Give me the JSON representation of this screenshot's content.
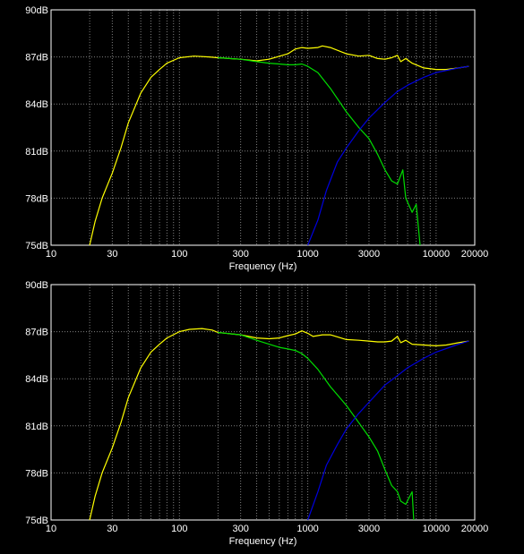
{
  "colors": {
    "background": "#000000",
    "frame": "#ffffff",
    "grid": "#7f7f7f",
    "text": "#ffffff"
  },
  "chart_data": [
    {
      "type": "line",
      "title": "",
      "xlabel": "Frequency (Hz)",
      "ylabel": "",
      "xscale": "log",
      "xlim": [
        10,
        20000
      ],
      "ylim": [
        75,
        90
      ],
      "grid": true,
      "x_ticks": [
        10,
        30,
        100,
        300,
        1000,
        3000,
        10000,
        20000
      ],
      "x_tick_labels": [
        "10",
        "30",
        "100",
        "300",
        "1000",
        "3000",
        "10000",
        "20000"
      ],
      "y_ticks": [
        75,
        78,
        81,
        84,
        87,
        90
      ],
      "y_tick_labels": [
        "75dB",
        "78dB",
        "81dB",
        "84dB",
        "87dB",
        "90dB"
      ],
      "series": [
        {
          "color": "#ffff00",
          "points": [
            [
              20,
              75
            ],
            [
              22,
              76.5
            ],
            [
              25,
              78
            ],
            [
              30,
              79.6
            ],
            [
              35,
              81.2
            ],
            [
              40,
              82.8
            ],
            [
              50,
              84.7
            ],
            [
              60,
              85.7
            ],
            [
              70,
              86.2
            ],
            [
              80,
              86.6
            ],
            [
              100,
              86.95
            ],
            [
              130,
              87.05
            ],
            [
              170,
              87
            ],
            [
              200,
              86.95
            ],
            [
              300,
              86.85
            ],
            [
              400,
              86.75
            ],
            [
              500,
              86.85
            ],
            [
              700,
              87.2
            ],
            [
              800,
              87.5
            ],
            [
              900,
              87.6
            ],
            [
              1000,
              87.55
            ],
            [
              1200,
              87.6
            ],
            [
              1300,
              87.7
            ],
            [
              1500,
              87.6
            ],
            [
              2000,
              87.2
            ],
            [
              2500,
              87.05
            ],
            [
              3000,
              87.1
            ],
            [
              3500,
              86.9
            ],
            [
              4000,
              86.85
            ],
            [
              4500,
              86.95
            ],
            [
              5000,
              87.1
            ],
            [
              5300,
              86.7
            ],
            [
              5800,
              86.9
            ],
            [
              6500,
              86.6
            ],
            [
              8000,
              86.3
            ],
            [
              10000,
              86.2
            ],
            [
              12000,
              86.2
            ],
            [
              15000,
              86.3
            ],
            [
              18000,
              86.4
            ]
          ]
        },
        {
          "color": "#00dd00",
          "points": [
            [
              200,
              86.95
            ],
            [
              300,
              86.85
            ],
            [
              400,
              86.7
            ],
            [
              500,
              86.6
            ],
            [
              600,
              86.55
            ],
            [
              700,
              86.5
            ],
            [
              800,
              86.5
            ],
            [
              900,
              86.55
            ],
            [
              1000,
              86.4
            ],
            [
              1200,
              86
            ],
            [
              1500,
              85
            ],
            [
              2000,
              83.5
            ],
            [
              2500,
              82.5
            ],
            [
              3000,
              81.8
            ],
            [
              3500,
              80.8
            ],
            [
              4000,
              79.8
            ],
            [
              4500,
              79.1
            ],
            [
              5000,
              78.9
            ],
            [
              5500,
              79.8
            ],
            [
              5800,
              78
            ],
            [
              6500,
              77.1
            ],
            [
              7000,
              77.6
            ],
            [
              7500,
              75
            ]
          ]
        },
        {
          "color": "#0000dd",
          "points": [
            [
              1000,
              75
            ],
            [
              1200,
              76.6
            ],
            [
              1400,
              78.5
            ],
            [
              1700,
              80.3
            ],
            [
              2000,
              81.2
            ],
            [
              2500,
              82.3
            ],
            [
              3000,
              83.1
            ],
            [
              4000,
              84.1
            ],
            [
              5000,
              84.8
            ],
            [
              6000,
              85.2
            ],
            [
              8000,
              85.7
            ],
            [
              10000,
              86
            ],
            [
              15000,
              86.3
            ],
            [
              18000,
              86.4
            ]
          ]
        }
      ]
    },
    {
      "type": "line",
      "title": "",
      "xlabel": "Frequency (Hz)",
      "ylabel": "",
      "xscale": "log",
      "xlim": [
        10,
        20000
      ],
      "ylim": [
        75,
        90
      ],
      "grid": true,
      "x_ticks": [
        10,
        30,
        100,
        300,
        1000,
        3000,
        10000,
        20000
      ],
      "x_tick_labels": [
        "10",
        "30",
        "100",
        "300",
        "1000",
        "3000",
        "10000",
        "20000"
      ],
      "y_ticks": [
        75,
        78,
        81,
        84,
        87,
        90
      ],
      "y_tick_labels": [
        "75dB",
        "78dB",
        "81dB",
        "84dB",
        "87dB",
        "90dB"
      ],
      "series": [
        {
          "color": "#ffff00",
          "points": [
            [
              20,
              75
            ],
            [
              22,
              76.5
            ],
            [
              25,
              78
            ],
            [
              30,
              79.6
            ],
            [
              35,
              81.2
            ],
            [
              40,
              82.8
            ],
            [
              50,
              84.7
            ],
            [
              60,
              85.7
            ],
            [
              70,
              86.2
            ],
            [
              80,
              86.6
            ],
            [
              100,
              87
            ],
            [
              120,
              87.15
            ],
            [
              150,
              87.2
            ],
            [
              180,
              87.1
            ],
            [
              200,
              86.95
            ],
            [
              300,
              86.8
            ],
            [
              400,
              86.6
            ],
            [
              500,
              86.55
            ],
            [
              600,
              86.6
            ],
            [
              700,
              86.75
            ],
            [
              800,
              86.85
            ],
            [
              900,
              87.05
            ],
            [
              1000,
              86.9
            ],
            [
              1100,
              86.7
            ],
            [
              1300,
              86.8
            ],
            [
              1500,
              86.8
            ],
            [
              2000,
              86.5
            ],
            [
              2500,
              86.45
            ],
            [
              3000,
              86.4
            ],
            [
              3500,
              86.35
            ],
            [
              4000,
              86.35
            ],
            [
              4500,
              86.4
            ],
            [
              5000,
              86.7
            ],
            [
              5300,
              86.3
            ],
            [
              5800,
              86.45
            ],
            [
              6500,
              86.2
            ],
            [
              8000,
              86.15
            ],
            [
              10000,
              86.1
            ],
            [
              12000,
              86.15
            ],
            [
              15000,
              86.3
            ],
            [
              18000,
              86.4
            ]
          ]
        },
        {
          "color": "#00dd00",
          "points": [
            [
              200,
              86.95
            ],
            [
              300,
              86.8
            ],
            [
              400,
              86.45
            ],
            [
              500,
              86.2
            ],
            [
              600,
              86
            ],
            [
              700,
              85.9
            ],
            [
              800,
              85.8
            ],
            [
              900,
              85.6
            ],
            [
              1000,
              85.3
            ],
            [
              1200,
              84.6
            ],
            [
              1500,
              83.5
            ],
            [
              2000,
              82.3
            ],
            [
              2500,
              81.2
            ],
            [
              3000,
              80.3
            ],
            [
              3500,
              79.4
            ],
            [
              4000,
              78.2
            ],
            [
              4500,
              77.2
            ],
            [
              5000,
              76.8
            ],
            [
              5300,
              76.2
            ],
            [
              5800,
              76
            ],
            [
              6500,
              76.8
            ],
            [
              6700,
              75
            ]
          ]
        },
        {
          "color": "#0000dd",
          "points": [
            [
              1000,
              75
            ],
            [
              1200,
              76.8
            ],
            [
              1400,
              78.5
            ],
            [
              1700,
              79.8
            ],
            [
              2000,
              80.8
            ],
            [
              2500,
              81.8
            ],
            [
              3000,
              82.5
            ],
            [
              4000,
              83.6
            ],
            [
              5000,
              84.2
            ],
            [
              6000,
              84.7
            ],
            [
              8000,
              85.3
            ],
            [
              10000,
              85.7
            ],
            [
              15000,
              86.2
            ],
            [
              18000,
              86.4
            ]
          ]
        }
      ]
    }
  ]
}
